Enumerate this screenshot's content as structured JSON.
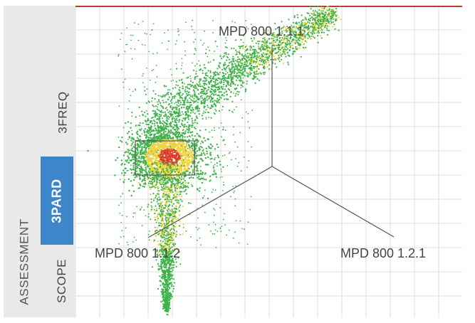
{
  "sidebar": {
    "tabs": [
      {
        "label": "3FREQ",
        "active": false
      },
      {
        "label": "3PARD",
        "active": true
      },
      {
        "label": "SCOPE",
        "active": false
      }
    ],
    "assessment_label": "ASSESSMENT"
  },
  "plot": {
    "axis_labels": {
      "top": "MPD 800 1.1.1",
      "left": "MPD 800 1.1.2",
      "right": "MPD 800 1.2.1"
    },
    "selection_box": true,
    "grid": true
  },
  "colors": {
    "active_tab": "#3d86c9",
    "sidebar_bg": "#e9e9e9",
    "top_border": "#c0392b",
    "density_low": "#3fb24a",
    "density_mid": "#f0d23c",
    "density_high": "#e23b2a"
  }
}
